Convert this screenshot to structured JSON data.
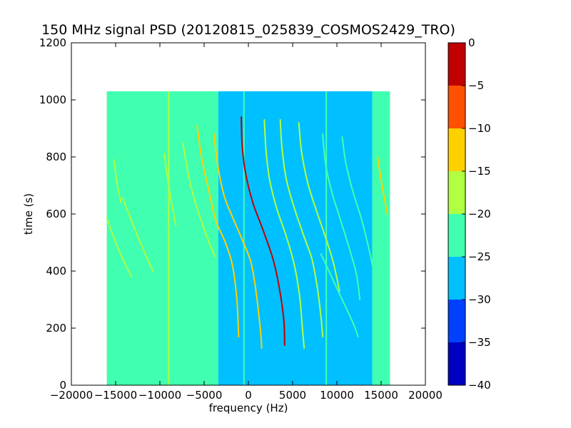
{
  "chart_data": {
    "type": "heatmap",
    "title": "150 MHz signal PSD (20120815_025839_COSMOS2429_TRO)",
    "xlabel": "frequency (Hz)",
    "ylabel": "time (s)",
    "xlim": [
      -20000,
      20000
    ],
    "ylim": [
      0,
      1200
    ],
    "x_ticks": [
      -20000,
      -15000,
      -10000,
      -5000,
      0,
      5000,
      10000,
      15000,
      20000
    ],
    "x_tick_labels": [
      "−20000",
      "−15000",
      "−10000",
      "−5000",
      "0",
      "5000",
      "10000",
      "15000",
      "20000"
    ],
    "y_ticks": [
      0,
      200,
      400,
      600,
      800,
      1000,
      1200
    ],
    "y_tick_labels": [
      "0",
      "200",
      "400",
      "600",
      "800",
      "1000",
      "1200"
    ],
    "data_extent": {
      "x": [
        -16000,
        16000
      ],
      "y": [
        0,
        1030
      ]
    },
    "colorbar": {
      "range": [
        -40,
        0
      ],
      "levels": [
        -40,
        -35,
        -30,
        -25,
        -20,
        -15,
        -10,
        -5,
        0
      ],
      "tick_labels": [
        "−40",
        "−35",
        "−30",
        "−25",
        "−20",
        "−15",
        "−10",
        "−5",
        "0"
      ],
      "colors": [
        "#0000c0",
        "#0040ff",
        "#00c0ff",
        "#40ffb0",
        "#b0ff40",
        "#ffd000",
        "#ff5000",
        "#c00000"
      ]
    },
    "background_regions": [
      {
        "x": [
          -16000,
          -3400
        ],
        "level": -22.5,
        "color": "#40ffb0"
      },
      {
        "x": [
          -3400,
          14000
        ],
        "level": -27.5,
        "color": "#00c0ff"
      },
      {
        "x": [
          14000,
          16000
        ],
        "level": -22.5,
        "color": "#40ffb0"
      }
    ],
    "vertical_lines": [
      {
        "x": -9000,
        "y": [
          0,
          1030
        ],
        "color": "#b0ff40"
      },
      {
        "x": -500,
        "y": [
          0,
          1030
        ],
        "color": "#40ffb0"
      },
      {
        "x": 8800,
        "y": [
          0,
          1030
        ],
        "color": "#40ffb0"
      }
    ],
    "traces": [
      {
        "points": [
          [
            -15200,
            790
          ],
          [
            -14800,
            700
          ],
          [
            -14400,
            640
          ]
        ],
        "color": "#b0ff40"
      },
      {
        "points": [
          [
            -16000,
            585
          ],
          [
            -15000,
            500
          ],
          [
            -14000,
            430
          ],
          [
            -13200,
            380
          ]
        ],
        "color": "#b0ff40"
      },
      {
        "points": [
          [
            -14200,
            655
          ],
          [
            -13000,
            560
          ],
          [
            -11800,
            470
          ],
          [
            -10800,
            400
          ]
        ],
        "color": "#b0ff40"
      },
      {
        "points": [
          [
            -9500,
            810
          ],
          [
            -9200,
            740
          ],
          [
            -8800,
            660
          ],
          [
            -8200,
            560
          ]
        ],
        "color": "#b0ff40"
      },
      {
        "points": [
          [
            -7400,
            850
          ],
          [
            -6800,
            740
          ],
          [
            -6000,
            640
          ],
          [
            -4800,
            530
          ],
          [
            -3800,
            450
          ]
        ],
        "color": "#b0ff40"
      },
      {
        "points": [
          [
            -5800,
            910
          ],
          [
            -5300,
            800
          ],
          [
            -4600,
            700
          ],
          [
            -3700,
            580
          ],
          [
            -2600,
            500
          ],
          [
            -1800,
            420
          ],
          [
            -1300,
            300
          ],
          [
            -1100,
            170
          ]
        ],
        "color": "#ffd000"
      },
      {
        "points": [
          [
            -3900,
            880
          ],
          [
            -3400,
            760
          ],
          [
            -2700,
            660
          ],
          [
            -1800,
            590
          ],
          [
            -700,
            510
          ],
          [
            300,
            430
          ],
          [
            900,
            320
          ],
          [
            1400,
            180
          ],
          [
            1500,
            130
          ]
        ],
        "color": "#ffd000"
      },
      {
        "points": [
          [
            -800,
            940
          ],
          [
            -700,
            840
          ],
          [
            -300,
            740
          ],
          [
            500,
            640
          ],
          [
            1700,
            540
          ],
          [
            2800,
            440
          ],
          [
            3500,
            340
          ],
          [
            4000,
            230
          ],
          [
            4100,
            140
          ]
        ],
        "color": "#c00000"
      },
      {
        "points": [
          [
            1800,
            930
          ],
          [
            2000,
            820
          ],
          [
            2400,
            720
          ],
          [
            3200,
            620
          ],
          [
            4300,
            520
          ],
          [
            5200,
            420
          ],
          [
            5800,
            310
          ],
          [
            6100,
            200
          ],
          [
            6300,
            130
          ]
        ],
        "color": "#b0ff40"
      },
      {
        "points": [
          [
            3600,
            930
          ],
          [
            3800,
            830
          ],
          [
            4300,
            720
          ],
          [
            5200,
            620
          ],
          [
            6300,
            520
          ],
          [
            7200,
            440
          ],
          [
            7800,
            340
          ],
          [
            8200,
            240
          ],
          [
            8400,
            170
          ]
        ],
        "color": "#b0ff40"
      },
      {
        "points": [
          [
            5700,
            920
          ],
          [
            6000,
            820
          ],
          [
            6700,
            710
          ],
          [
            7600,
            620
          ],
          [
            8700,
            520
          ],
          [
            9600,
            430
          ],
          [
            10300,
            330
          ]
        ],
        "color": "#b0ff40"
      },
      {
        "points": [
          [
            8400,
            880
          ],
          [
            8700,
            780
          ],
          [
            9400,
            680
          ],
          [
            10400,
            580
          ],
          [
            11400,
            480
          ],
          [
            12200,
            390
          ],
          [
            12600,
            300
          ]
        ],
        "color": "#40ffb0"
      },
      {
        "points": [
          [
            10600,
            870
          ],
          [
            11000,
            780
          ],
          [
            11800,
            680
          ],
          [
            12800,
            580
          ],
          [
            13600,
            480
          ],
          [
            14200,
            390
          ],
          [
            14500,
            320
          ]
        ],
        "color": "#40ffb0"
      },
      {
        "points": [
          [
            8200,
            460
          ],
          [
            9400,
            380
          ],
          [
            10600,
            300
          ],
          [
            11800,
            220
          ],
          [
            12400,
            170
          ]
        ],
        "color": "#40ffb0"
      },
      {
        "points": [
          [
            14600,
            800
          ],
          [
            15100,
            700
          ],
          [
            15700,
            600
          ]
        ],
        "color": "#ffd000"
      }
    ]
  }
}
